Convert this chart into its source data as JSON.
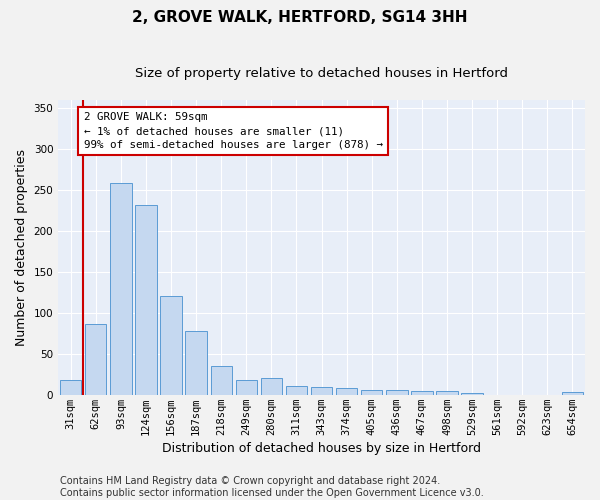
{
  "title": "2, GROVE WALK, HERTFORD, SG14 3HH",
  "subtitle": "Size of property relative to detached houses in Hertford",
  "xlabel": "Distribution of detached houses by size in Hertford",
  "ylabel": "Number of detached properties",
  "footer_line1": "Contains HM Land Registry data © Crown copyright and database right 2024.",
  "footer_line2": "Contains public sector information licensed under the Open Government Licence v3.0.",
  "categories": [
    "31sqm",
    "62sqm",
    "93sqm",
    "124sqm",
    "156sqm",
    "187sqm",
    "218sqm",
    "249sqm",
    "280sqm",
    "311sqm",
    "343sqm",
    "374sqm",
    "405sqm",
    "436sqm",
    "467sqm",
    "498sqm",
    "529sqm",
    "561sqm",
    "592sqm",
    "623sqm",
    "654sqm"
  ],
  "values": [
    18,
    86,
    259,
    232,
    120,
    78,
    35,
    18,
    20,
    11,
    9,
    8,
    6,
    6,
    5,
    4,
    2,
    0,
    0,
    0,
    3
  ],
  "bar_color": "#c5d8f0",
  "bar_edge_color": "#5b9bd5",
  "annotation_text": "2 GROVE WALK: 59sqm\n← 1% of detached houses are smaller (11)\n99% of semi-detached houses are larger (878) →",
  "annotation_box_color": "#ffffff",
  "annotation_box_edge_color": "#cc0000",
  "marker_line_color": "#cc0000",
  "ylim": [
    0,
    360
  ],
  "yticks": [
    0,
    50,
    100,
    150,
    200,
    250,
    300,
    350
  ],
  "background_color": "#e8eef8",
  "grid_color": "#ffffff",
  "fig_bg_color": "#f2f2f2",
  "title_fontsize": 11,
  "subtitle_fontsize": 9.5,
  "axis_label_fontsize": 9,
  "tick_fontsize": 7.5,
  "footer_fontsize": 7
}
